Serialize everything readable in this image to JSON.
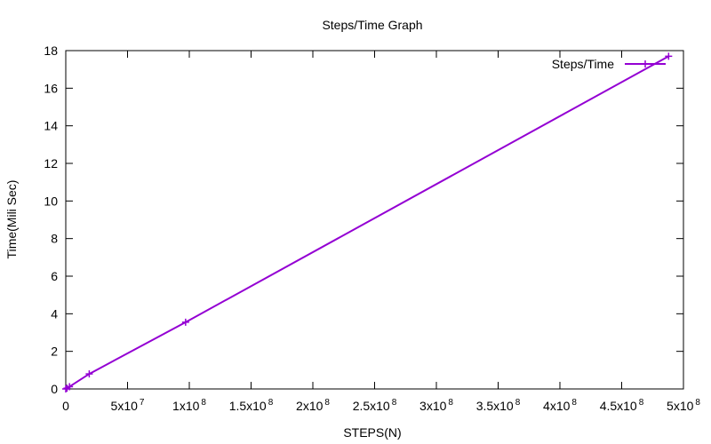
{
  "chart_data": {
    "type": "line",
    "title": "Steps/Time Graph",
    "xlabel": "STEPS(N)",
    "ylabel": "Time(Mili Sec)",
    "xlim": [
      0,
      500000000
    ],
    "ylim": [
      0,
      18
    ],
    "x_ticks": [
      {
        "value": 0,
        "base": "0",
        "exp": ""
      },
      {
        "value": 50000000,
        "base": "5x10",
        "exp": "7"
      },
      {
        "value": 100000000,
        "base": "1x10",
        "exp": "8"
      },
      {
        "value": 150000000,
        "base": "1.5x10",
        "exp": "8"
      },
      {
        "value": 200000000,
        "base": "2x10",
        "exp": "8"
      },
      {
        "value": 250000000,
        "base": "2.5x10",
        "exp": "8"
      },
      {
        "value": 300000000,
        "base": "3x10",
        "exp": "8"
      },
      {
        "value": 350000000,
        "base": "3.5x10",
        "exp": "8"
      },
      {
        "value": 400000000,
        "base": "4x10",
        "exp": "8"
      },
      {
        "value": 450000000,
        "base": "4.5x10",
        "exp": "8"
      },
      {
        "value": 500000000,
        "base": "5x10",
        "exp": "8"
      }
    ],
    "y_ticks": [
      0,
      2,
      4,
      6,
      8,
      10,
      12,
      14,
      16,
      18
    ],
    "grid": false,
    "legend_position": "top-right",
    "series": [
      {
        "name": "Steps/Time",
        "color": "#9400d3",
        "x": [
          0,
          1000000,
          3000000,
          19000000,
          97000000,
          488000000
        ],
        "y": [
          0,
          0.04,
          0.12,
          0.8,
          3.55,
          17.7
        ]
      }
    ]
  }
}
